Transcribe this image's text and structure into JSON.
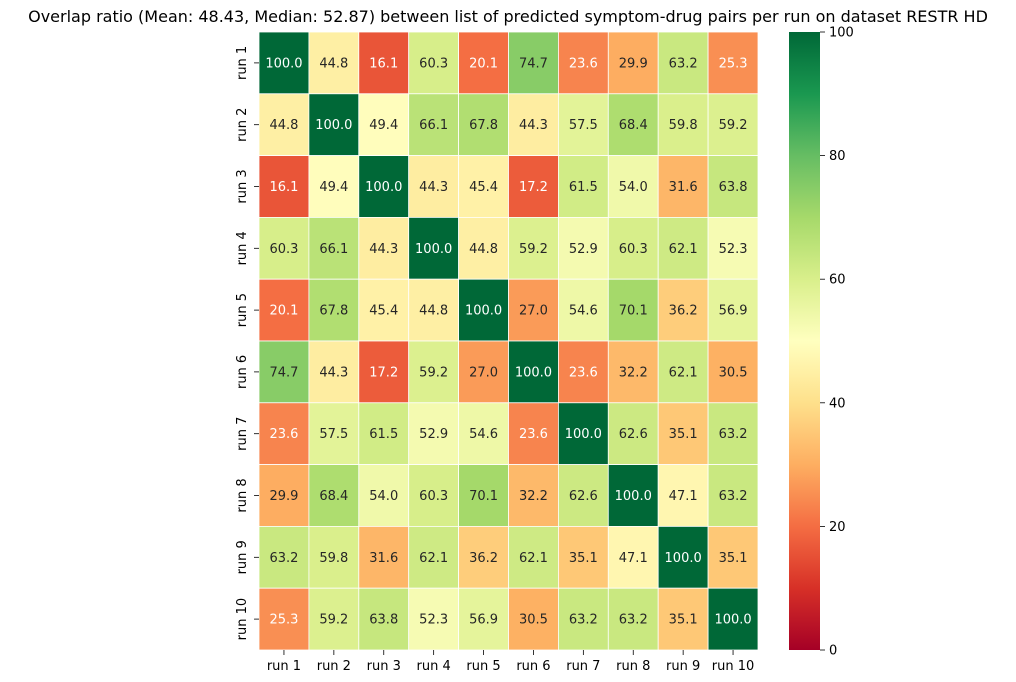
{
  "chart_data": {
    "type": "heatmap",
    "title": "Overlap ratio (Mean: 48.43, Median: 52.87) between list of predicted symptom-drug pairs per run on dataset RESTR HD",
    "x_categories": [
      "run 1",
      "run 2",
      "run 3",
      "run 4",
      "run 5",
      "run 6",
      "run 7",
      "run 8",
      "run 9",
      "run 10"
    ],
    "y_categories": [
      "run 1",
      "run 2",
      "run 3",
      "run 4",
      "run 5",
      "run 6",
      "run 7",
      "run 8",
      "run 9",
      "run 10"
    ],
    "values": [
      [
        100.0,
        44.8,
        16.1,
        60.3,
        20.1,
        74.7,
        23.6,
        29.9,
        63.2,
        25.3
      ],
      [
        44.8,
        100.0,
        49.4,
        66.1,
        67.8,
        44.3,
        57.5,
        68.4,
        59.8,
        59.2
      ],
      [
        16.1,
        49.4,
        100.0,
        44.3,
        45.4,
        17.2,
        61.5,
        54.0,
        31.6,
        63.8
      ],
      [
        60.3,
        66.1,
        44.3,
        100.0,
        44.8,
        59.2,
        52.9,
        60.3,
        62.1,
        52.3
      ],
      [
        20.1,
        67.8,
        45.4,
        44.8,
        100.0,
        27.0,
        54.6,
        70.1,
        36.2,
        56.9
      ],
      [
        74.7,
        44.3,
        17.2,
        59.2,
        27.0,
        100.0,
        23.6,
        32.2,
        62.1,
        30.5
      ],
      [
        23.6,
        57.5,
        61.5,
        52.9,
        54.6,
        23.6,
        100.0,
        62.6,
        35.1,
        63.2
      ],
      [
        29.9,
        68.4,
        54.0,
        60.3,
        70.1,
        32.2,
        62.6,
        100.0,
        47.1,
        63.2
      ],
      [
        63.2,
        59.8,
        31.6,
        62.1,
        36.2,
        62.1,
        35.1,
        47.1,
        100.0,
        35.1
      ],
      [
        25.3,
        59.2,
        63.8,
        52.3,
        56.9,
        30.5,
        63.2,
        63.2,
        35.1,
        100.0
      ]
    ],
    "value_format": "0.1f",
    "colormap": "RdYlGn",
    "vmin": 0,
    "vmax": 100,
    "colorbar_ticks": [
      0,
      20,
      40,
      60,
      80,
      100
    ],
    "xlabel": "",
    "ylabel": ""
  }
}
